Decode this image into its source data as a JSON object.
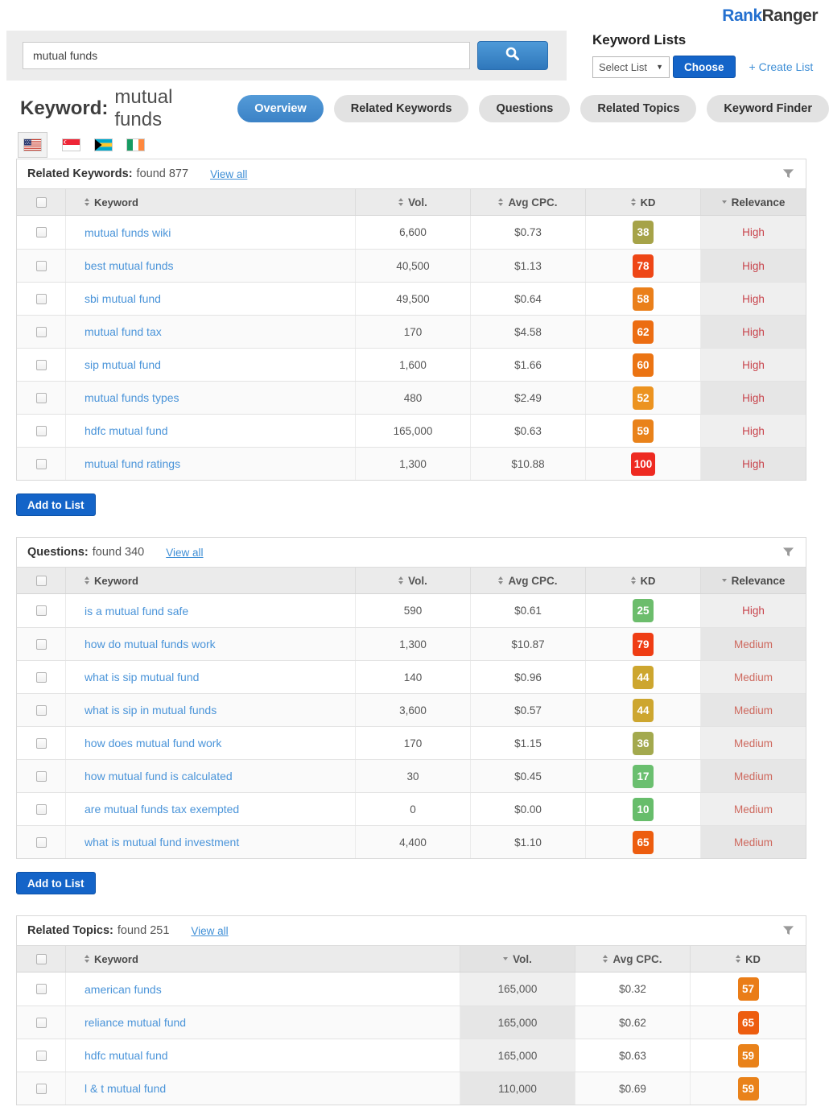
{
  "logo": {
    "part1": "Rank",
    "part2": "Ranger"
  },
  "search": {
    "value": "mutual funds"
  },
  "keyword_lists": {
    "title": "Keyword Lists",
    "select_label": "Select List",
    "choose_label": "Choose",
    "create_label": "+ Create List"
  },
  "page_title": {
    "label": "Keyword:",
    "value": "mutual funds"
  },
  "tabs": [
    {
      "label": "Overview",
      "active": true
    },
    {
      "label": "Related Keywords",
      "active": false
    },
    {
      "label": "Questions",
      "active": false
    },
    {
      "label": "Related Topics",
      "active": false
    },
    {
      "label": "Keyword Finder",
      "active": false
    }
  ],
  "flags": [
    {
      "name": "united-states",
      "selected": true
    },
    {
      "name": "singapore",
      "selected": false
    },
    {
      "name": "bahamas",
      "selected": false
    },
    {
      "name": "ireland",
      "selected": false
    }
  ],
  "add_to_list_label": "Add to List",
  "relevance_colors": {
    "High": "#c8444c",
    "Medium": "#ce685d"
  },
  "sections": [
    {
      "title": "Related Keywords:",
      "found": "found 877",
      "view_all": "View all",
      "columns": {
        "keyword": "Keyword",
        "vol": "Vol.",
        "cpc": "Avg CPC.",
        "kd": "KD",
        "relevance": "Relevance"
      },
      "sorted": "relevance",
      "has_relevance": true,
      "rows": [
        {
          "keyword": "mutual funds wiki",
          "vol": "6,600",
          "cpc": "$0.73",
          "kd": "38",
          "kd_color": "#a6a348",
          "relevance": "High"
        },
        {
          "keyword": "best mutual funds",
          "vol": "40,500",
          "cpc": "$1.13",
          "kd": "78",
          "kd_color": "#ee4616",
          "relevance": "High"
        },
        {
          "keyword": "sbi mutual fund",
          "vol": "49,500",
          "cpc": "$0.64",
          "kd": "58",
          "kd_color": "#ea7f1a",
          "relevance": "High"
        },
        {
          "keyword": "mutual fund tax",
          "vol": "170",
          "cpc": "$4.58",
          "kd": "62",
          "kd_color": "#ec6d12",
          "relevance": "High"
        },
        {
          "keyword": "sip mutual fund",
          "vol": "1,600",
          "cpc": "$1.66",
          "kd": "60",
          "kd_color": "#eb7413",
          "relevance": "High"
        },
        {
          "keyword": "mutual funds types",
          "vol": "480",
          "cpc": "$2.49",
          "kd": "52",
          "kd_color": "#ec9320",
          "relevance": "High"
        },
        {
          "keyword": "hdfc mutual fund",
          "vol": "165,000",
          "cpc": "$0.63",
          "kd": "59",
          "kd_color": "#e9821a",
          "relevance": "High"
        },
        {
          "keyword": "mutual fund ratings",
          "vol": "1,300",
          "cpc": "$10.88",
          "kd": "100",
          "kd_color": "#ee2a21",
          "relevance": "High"
        }
      ]
    },
    {
      "title": "Questions:",
      "found": "found 340",
      "view_all": "View all",
      "columns": {
        "keyword": "Keyword",
        "vol": "Vol.",
        "cpc": "Avg CPC.",
        "kd": "KD",
        "relevance": "Relevance"
      },
      "sorted": "relevance",
      "has_relevance": true,
      "rows": [
        {
          "keyword": "is a mutual fund safe",
          "vol": "590",
          "cpc": "$0.61",
          "kd": "25",
          "kd_color": "#6cbd6c",
          "relevance": "High"
        },
        {
          "keyword": "how do mutual funds work",
          "vol": "1,300",
          "cpc": "$10.87",
          "kd": "79",
          "kd_color": "#ef3d14",
          "relevance": "Medium"
        },
        {
          "keyword": "what is sip mutual fund",
          "vol": "140",
          "cpc": "$0.96",
          "kd": "44",
          "kd_color": "#cda62f",
          "relevance": "Medium"
        },
        {
          "keyword": "what is sip in mutual funds",
          "vol": "3,600",
          "cpc": "$0.57",
          "kd": "44",
          "kd_color": "#cda62f",
          "relevance": "Medium"
        },
        {
          "keyword": "how does mutual fund work",
          "vol": "170",
          "cpc": "$1.15",
          "kd": "36",
          "kd_color": "#a3a94e",
          "relevance": "Medium"
        },
        {
          "keyword": "how mutual fund is calculated",
          "vol": "30",
          "cpc": "$0.45",
          "kd": "17",
          "kd_color": "#6abf6f",
          "relevance": "Medium"
        },
        {
          "keyword": "are mutual funds tax exempted",
          "vol": "0",
          "cpc": "$0.00",
          "kd": "10",
          "kd_color": "#67bd6b",
          "relevance": "Medium"
        },
        {
          "keyword": "what is mutual fund investment",
          "vol": "4,400",
          "cpc": "$1.10",
          "kd": "65",
          "kd_color": "#ed5d0f",
          "relevance": "Medium"
        }
      ]
    },
    {
      "title": "Related Topics:",
      "found": "found 251",
      "view_all": "View all",
      "columns": {
        "keyword": "Keyword",
        "vol": "Vol.",
        "cpc": "Avg CPC.",
        "kd": "KD"
      },
      "sorted": "vol",
      "has_relevance": false,
      "rows": [
        {
          "keyword": "american funds",
          "vol": "165,000",
          "cpc": "$0.32",
          "kd": "57",
          "kd_color": "#ea7d18"
        },
        {
          "keyword": "reliance mutual fund",
          "vol": "165,000",
          "cpc": "$0.62",
          "kd": "65",
          "kd_color": "#ed5d0f"
        },
        {
          "keyword": "hdfc mutual fund",
          "vol": "165,000",
          "cpc": "$0.63",
          "kd": "59",
          "kd_color": "#e9821a"
        },
        {
          "keyword": "l & t mutual fund",
          "vol": "110,000",
          "cpc": "$0.69",
          "kd": "59",
          "kd_color": "#e9821a"
        }
      ]
    }
  ]
}
